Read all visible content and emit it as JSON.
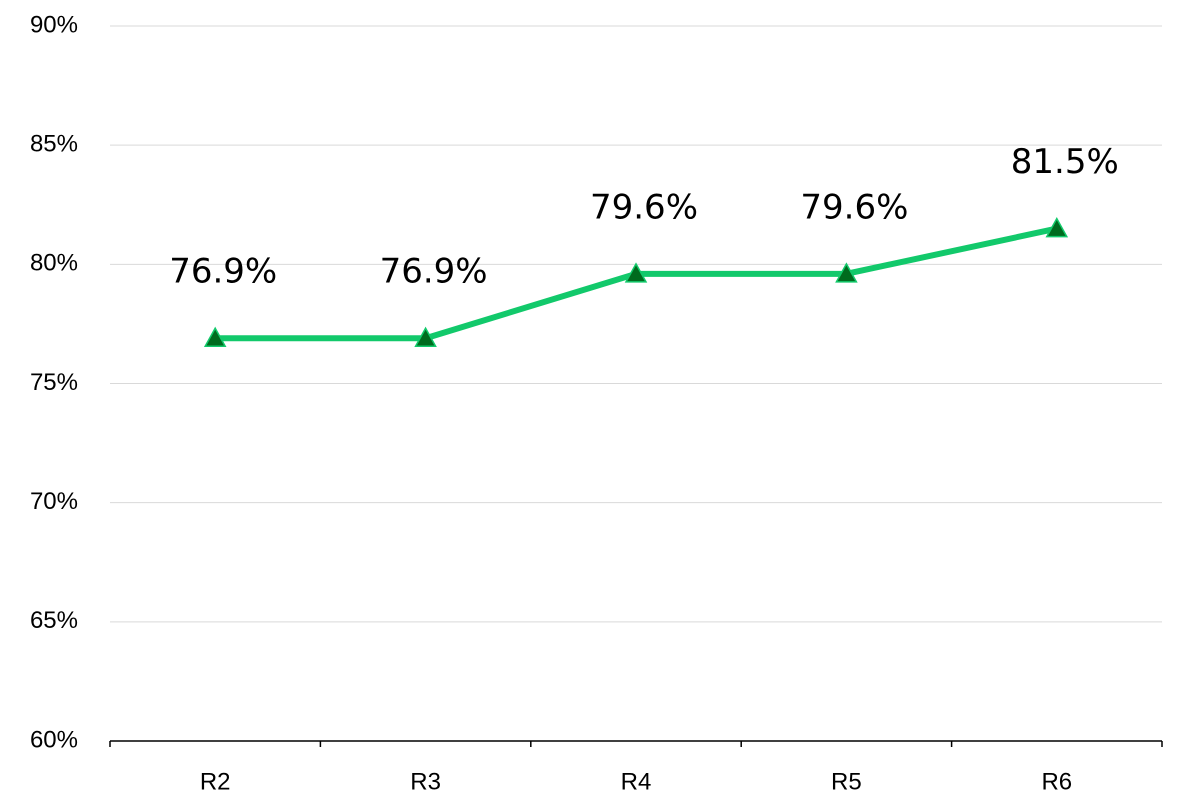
{
  "chart_data": {
    "type": "line",
    "categories": [
      "R2",
      "R3",
      "R4",
      "R5",
      "R6"
    ],
    "series": [
      {
        "color": "#12c96b",
        "marker_color": "#006b1e",
        "values": [
          76.9,
          76.9,
          79.6,
          79.6,
          81.5
        ],
        "value_labels": [
          "76.9%",
          "76.9%",
          "79.6%",
          "79.6%",
          "81.5%"
        ]
      }
    ],
    "ylim": [
      60,
      90
    ],
    "yticks": [
      {
        "value": 60,
        "label": "60%"
      },
      {
        "value": 65,
        "label": "65%"
      },
      {
        "value": 70,
        "label": "70%"
      },
      {
        "value": 75,
        "label": "75%"
      },
      {
        "value": 80,
        "label": "80%"
      },
      {
        "value": 85,
        "label": "85%"
      },
      {
        "value": 90,
        "label": "90%"
      }
    ],
    "grid": true
  }
}
